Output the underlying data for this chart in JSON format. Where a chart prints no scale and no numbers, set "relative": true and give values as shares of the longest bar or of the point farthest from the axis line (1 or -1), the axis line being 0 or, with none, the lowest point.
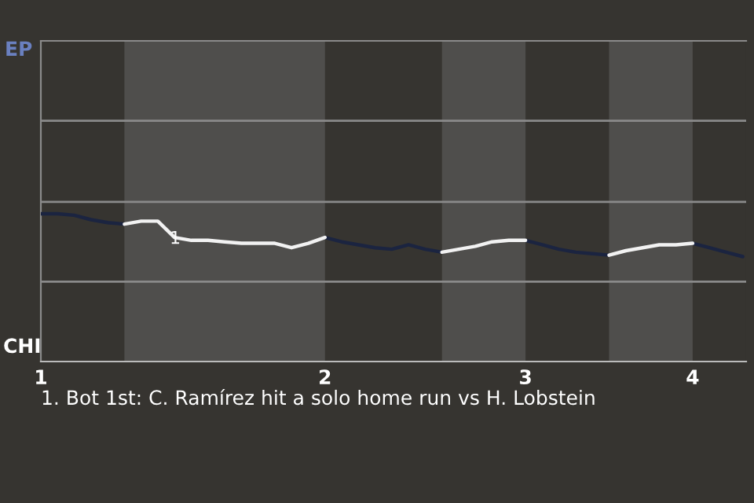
{
  "chart_data": {
    "type": "line",
    "relative": true,
    "categories": [
      "1",
      null,
      null,
      null,
      null,
      null,
      null,
      null,
      null,
      null,
      null,
      null,
      null,
      null,
      null,
      null,
      null,
      "2",
      null,
      null,
      null,
      null,
      null,
      null,
      null,
      null,
      null,
      null,
      null,
      "3",
      null,
      null,
      null,
      null,
      null,
      null,
      null,
      null,
      null,
      "4",
      null,
      null,
      null
    ],
    "series": [
      {
        "color": "#1b2440",
        "values": [
          1.0,
          1.0,
          0.99,
          0.96,
          0.94,
          0.93,
          null,
          null,
          null,
          null,
          null,
          null,
          null,
          null,
          null,
          null,
          null,
          0.84,
          0.81,
          0.79,
          0.77,
          0.76,
          0.79,
          0.76,
          0.74,
          null,
          null,
          null,
          null,
          0.82,
          0.79,
          0.76,
          0.74,
          0.73,
          0.72,
          null,
          null,
          null,
          null,
          0.8,
          0.77,
          0.74,
          0.71
        ]
      },
      {
        "color": "#f2f2f2",
        "values": [
          null,
          null,
          null,
          null,
          null,
          0.93,
          0.95,
          0.95,
          0.84,
          0.82,
          0.82,
          0.81,
          0.8,
          0.8,
          0.8,
          0.77,
          0.8,
          0.84,
          null,
          null,
          null,
          null,
          null,
          null,
          0.74,
          0.76,
          0.78,
          0.81,
          0.82,
          0.82,
          null,
          null,
          null,
          null,
          0.72,
          0.75,
          0.77,
          0.79,
          0.79,
          0.8,
          null,
          null,
          null
        ]
      }
    ],
    "ref_lines": [
      {
        "axis": "y",
        "value": 0.54,
        "color": "#8a8a8a"
      },
      {
        "axis": "y",
        "value": 1.08,
        "color": "#8a8a8a"
      },
      {
        "axis": "y",
        "value": 1.63,
        "color": "#8a8a8a"
      }
    ],
    "annotations": [
      "EP",
      "CHI",
      "1",
      "1. Bot 1st: C. Ramírez hit a solo home run vs H. Lobstein"
    ]
  }
}
